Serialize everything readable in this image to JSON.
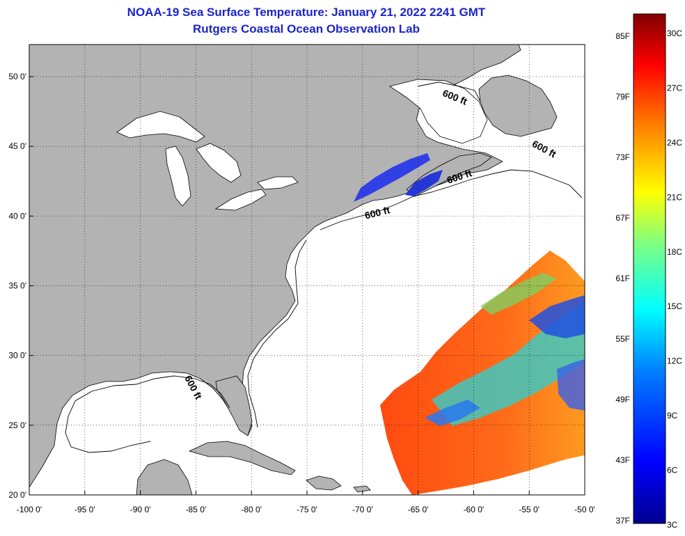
{
  "title": {
    "line1": "NOAA-19 Sea Surface Temperature:  January 21, 2022 2241 GMT",
    "line2": "Rutgers Coastal Ocean Observation Lab"
  },
  "map": {
    "lon_range": [
      -100,
      -50
    ],
    "lat_range": [
      20,
      52.3
    ],
    "lon_ticks": [
      {
        "value": -100,
        "label": "-100 0'"
      },
      {
        "value": -95,
        "label": "-95 0'"
      },
      {
        "value": -90,
        "label": "-90 0'"
      },
      {
        "value": -85,
        "label": "-85 0'"
      },
      {
        "value": -80,
        "label": "-80 0'"
      },
      {
        "value": -75,
        "label": "-75 0'"
      },
      {
        "value": -70,
        "label": "-70 0'"
      },
      {
        "value": -65,
        "label": "-65 0'"
      },
      {
        "value": -60,
        "label": "-60 0'"
      },
      {
        "value": -55,
        "label": "-55 0'"
      },
      {
        "value": -50,
        "label": "-50 0'"
      }
    ],
    "lat_ticks": [
      {
        "value": 20,
        "label": "20 0'"
      },
      {
        "value": 25,
        "label": "25 0'"
      },
      {
        "value": 30,
        "label": "30 0'"
      },
      {
        "value": 35,
        "label": "35 0'"
      },
      {
        "value": 40,
        "label": "40 0'"
      },
      {
        "value": 45,
        "label": "45 0'"
      },
      {
        "value": 50,
        "label": "50 0'"
      }
    ],
    "contour_labels": [
      {
        "text": "600 ft",
        "lon": -61.8,
        "lat": 48.3
      },
      {
        "text": "600 ft",
        "lon": -53.8,
        "lat": 44.6
      },
      {
        "text": "600 ft",
        "lon": -61.2,
        "lat": 42.6
      },
      {
        "text": "600 ft",
        "lon": -68.6,
        "lat": 40.0
      },
      {
        "text": "600 ft",
        "lon": -85.5,
        "lat": 27.6
      }
    ],
    "land_color": "#b3b3b3",
    "ocean_color": "#ffffff"
  },
  "colorbar": {
    "fahrenheit_labels": [
      "85F",
      "79F",
      "73F",
      "67F",
      "61F",
      "55F",
      "49F",
      "43F",
      "37F"
    ],
    "celsius_labels": [
      "30C",
      "27C",
      "24C",
      "21C",
      "18C",
      "15C",
      "12C",
      "9C",
      "6C",
      "3C"
    ],
    "colors": [
      "#00008f",
      "#0000ff",
      "#0080ff",
      "#00ffff",
      "#80ff80",
      "#ffff00",
      "#ff8000",
      "#ff0000",
      "#800000"
    ]
  }
}
